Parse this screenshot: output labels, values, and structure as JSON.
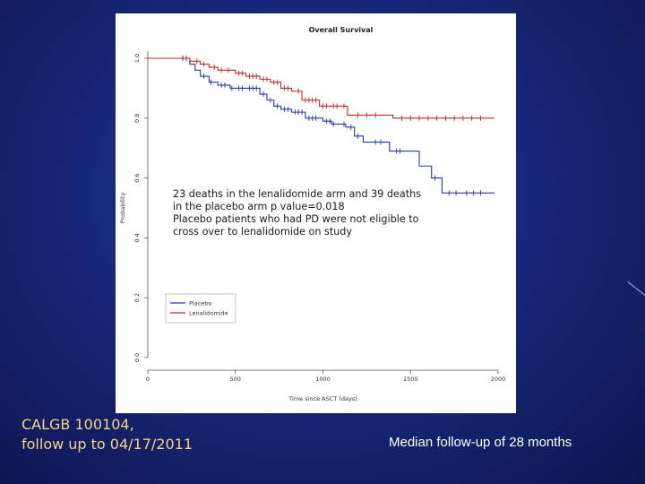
{
  "slide": {
    "footer_left": "CALGB 100104,\nfollow up to 04/17/2011",
    "footer_right": "Median follow-up of 28 months",
    "annotation": "23 deaths in the lenalidomide arm and 39 deaths\nin the placebo arm p value=0.018\nPlacebo patients who had PD were not eligible to\ncross over to lenalidomide on study"
  },
  "colors": {
    "background": "#18287a",
    "placebo": "#2a36a8",
    "lenalidomide": "#c0282a",
    "footer_left_text": "#f1d58a",
    "footer_right_text": "#ffffff"
  },
  "chart_data": {
    "type": "line",
    "title": "Overall Survival",
    "xlabel": "Time since ASCT (days)",
    "ylabel": "Probability",
    "xlim": [
      0,
      2000
    ],
    "ylim": [
      0,
      1
    ],
    "x_ticks": [
      "0",
      "500",
      "1000",
      "1500",
      "2000"
    ],
    "y_ticks": [
      "0.0",
      "0.2",
      "0.4",
      "0.6",
      "0.8",
      "1.0"
    ],
    "legend_position": "bottom-left",
    "grid": false,
    "series": [
      {
        "name": "Placebo",
        "color": "#2a36a8",
        "x": [
          0,
          180,
          240,
          270,
          300,
          350,
          400,
          470,
          560,
          640,
          680,
          720,
          760,
          820,
          900,
          1000,
          1050,
          1100,
          1130,
          1150,
          1180,
          1230,
          1380,
          1540,
          1550,
          1580,
          1620,
          1680,
          1800,
          1980
        ],
        "y": [
          1.0,
          1.0,
          0.98,
          0.96,
          0.94,
          0.92,
          0.91,
          0.9,
          0.9,
          0.88,
          0.86,
          0.84,
          0.83,
          0.82,
          0.8,
          0.79,
          0.78,
          0.78,
          0.77,
          0.77,
          0.74,
          0.72,
          0.69,
          0.69,
          0.64,
          0.64,
          0.6,
          0.55,
          0.55,
          0.55
        ]
      },
      {
        "name": "Lenalidomide",
        "color": "#c0282a",
        "x": [
          0,
          180,
          240,
          300,
          350,
          400,
          500,
          560,
          640,
          700,
          760,
          820,
          880,
          980,
          1100,
          1140,
          1350,
          1400,
          1980
        ],
        "y": [
          1.0,
          1.0,
          0.99,
          0.98,
          0.97,
          0.96,
          0.95,
          0.94,
          0.93,
          0.92,
          0.9,
          0.89,
          0.86,
          0.84,
          0.84,
          0.81,
          0.81,
          0.8,
          0.8
        ]
      }
    ],
    "censor_marks": [
      {
        "series": "Placebo",
        "x": [
          200,
          220,
          320,
          360,
          420,
          440,
          480,
          520,
          540,
          580,
          600,
          620,
          660,
          700,
          740,
          780,
          800,
          840,
          860,
          880,
          920,
          940,
          960,
          1020,
          1040,
          1060,
          1120,
          1160,
          1200,
          1300,
          1330,
          1420,
          1440,
          1640,
          1720,
          1760,
          1820,
          1860,
          1900
        ]
      },
      {
        "series": "Lenalidomide",
        "x": [
          200,
          220,
          280,
          320,
          380,
          420,
          460,
          520,
          540,
          580,
          600,
          620,
          660,
          680,
          720,
          740,
          780,
          800,
          860,
          900,
          920,
          940,
          960,
          1000,
          1020,
          1060,
          1080,
          1120,
          1200,
          1250,
          1300,
          1450,
          1500,
          1550,
          1600,
          1650,
          1700,
          1750,
          1800,
          1850,
          1900
        ]
      }
    ]
  }
}
